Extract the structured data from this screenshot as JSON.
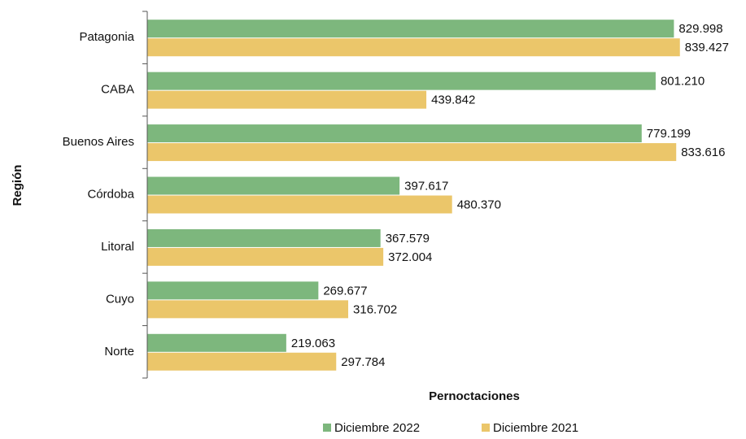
{
  "chart_data": {
    "type": "bar",
    "orientation": "horizontal",
    "x_label": "Pernoctaciones",
    "y_label": "Región",
    "categories": [
      "Patagonia",
      "CABA",
      "Buenos Aires",
      "Córdoba",
      "Litoral",
      "Cuyo",
      "Norte"
    ],
    "series": [
      {
        "name": "Diciembre 2022",
        "color": "#7db77d",
        "values": [
          829998,
          801210,
          779199,
          397617,
          367579,
          269677,
          219063
        ],
        "value_labels": [
          "829.998",
          "801.210",
          "779.199",
          "397.617",
          "367.579",
          "269.677",
          "219.063"
        ]
      },
      {
        "name": "Diciembre 2021",
        "color": "#ebc66a",
        "values": [
          839427,
          439842,
          833616,
          480370,
          372004,
          316702,
          297784
        ],
        "value_labels": [
          "839.427",
          "439.842",
          "833.616",
          "480.370",
          "372.004",
          "316.702",
          "297.784"
        ]
      }
    ],
    "xlim": [
      0,
      900000
    ],
    "legend": "bottom"
  }
}
